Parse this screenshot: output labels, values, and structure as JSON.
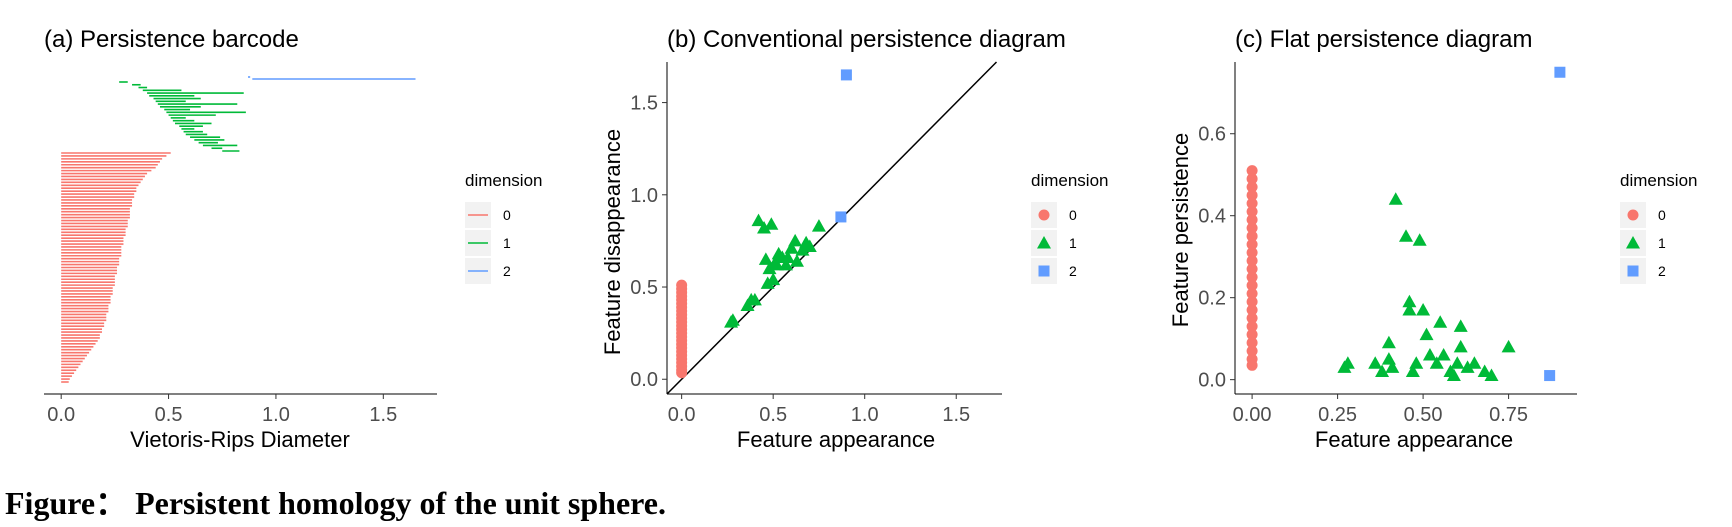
{
  "colors": {
    "dim0": "#F8766D",
    "dim1": "#00BA38",
    "dim2": "#619CFF"
  },
  "caption": "Figure： Persistent homology of the unit sphere.",
  "chart_data": [
    {
      "type": "barcode",
      "title": "(a) Persistence barcode",
      "xlabel": "Vietoris-Rips Diameter",
      "ylabel": "",
      "xlim": [
        -0.08,
        1.75
      ],
      "xticks": [
        "0.0",
        "0.5",
        "1.0",
        "1.5"
      ],
      "legend": {
        "title": "dimension",
        "entries": [
          "0",
          "1",
          "2"
        ],
        "position": "right"
      },
      "bars_dim0": [
        [
          0,
          0.51
        ],
        [
          0,
          0.49
        ],
        [
          0,
          0.47
        ],
        [
          0,
          0.46
        ],
        [
          0,
          0.45
        ],
        [
          0,
          0.44
        ],
        [
          0,
          0.42
        ],
        [
          0,
          0.4
        ],
        [
          0,
          0.39
        ],
        [
          0,
          0.38
        ],
        [
          0,
          0.37
        ],
        [
          0,
          0.36
        ],
        [
          0,
          0.35
        ],
        [
          0,
          0.35
        ],
        [
          0,
          0.34
        ],
        [
          0,
          0.34
        ],
        [
          0,
          0.33
        ],
        [
          0,
          0.33
        ],
        [
          0,
          0.33
        ],
        [
          0,
          0.32
        ],
        [
          0,
          0.32
        ],
        [
          0,
          0.32
        ],
        [
          0,
          0.32
        ],
        [
          0,
          0.31
        ],
        [
          0,
          0.31
        ],
        [
          0,
          0.31
        ],
        [
          0,
          0.3
        ],
        [
          0,
          0.3
        ],
        [
          0,
          0.3
        ],
        [
          0,
          0.29
        ],
        [
          0,
          0.29
        ],
        [
          0,
          0.29
        ],
        [
          0,
          0.28
        ],
        [
          0,
          0.28
        ],
        [
          0,
          0.28
        ],
        [
          0,
          0.28
        ],
        [
          0,
          0.27
        ],
        [
          0,
          0.27
        ],
        [
          0,
          0.27
        ],
        [
          0,
          0.26
        ],
        [
          0,
          0.26
        ],
        [
          0,
          0.26
        ],
        [
          0,
          0.25
        ],
        [
          0,
          0.25
        ],
        [
          0,
          0.25
        ],
        [
          0,
          0.25
        ],
        [
          0,
          0.24
        ],
        [
          0,
          0.24
        ],
        [
          0,
          0.24
        ],
        [
          0,
          0.23
        ],
        [
          0,
          0.23
        ],
        [
          0,
          0.23
        ],
        [
          0,
          0.22
        ],
        [
          0,
          0.22
        ],
        [
          0,
          0.22
        ],
        [
          0,
          0.21
        ],
        [
          0,
          0.21
        ],
        [
          0,
          0.21
        ],
        [
          0,
          0.2
        ],
        [
          0,
          0.2
        ],
        [
          0,
          0.19
        ],
        [
          0,
          0.19
        ],
        [
          0,
          0.18
        ],
        [
          0,
          0.18
        ],
        [
          0,
          0.17
        ],
        [
          0,
          0.16
        ],
        [
          0,
          0.15
        ],
        [
          0,
          0.14
        ],
        [
          0,
          0.13
        ],
        [
          0,
          0.12
        ],
        [
          0,
          0.11
        ],
        [
          0,
          0.1
        ],
        [
          0,
          0.09
        ],
        [
          0,
          0.08
        ],
        [
          0,
          0.07
        ],
        [
          0,
          0.06
        ],
        [
          0,
          0.05
        ],
        [
          0,
          0.04
        ],
        [
          0,
          0.035
        ]
      ],
      "bars_dim1": [
        [
          0.27,
          0.31
        ],
        [
          0.33,
          0.37
        ],
        [
          0.36,
          0.4
        ],
        [
          0.38,
          0.56
        ],
        [
          0.4,
          0.85
        ],
        [
          0.41,
          0.62
        ],
        [
          0.43,
          0.65
        ],
        [
          0.44,
          0.58
        ],
        [
          0.45,
          0.82
        ],
        [
          0.46,
          0.65
        ],
        [
          0.48,
          0.6
        ],
        [
          0.49,
          0.86
        ],
        [
          0.5,
          0.72
        ],
        [
          0.51,
          0.58
        ],
        [
          0.52,
          0.62
        ],
        [
          0.53,
          0.7
        ],
        [
          0.55,
          0.66
        ],
        [
          0.56,
          0.62
        ],
        [
          0.57,
          0.66
        ],
        [
          0.58,
          0.68
        ],
        [
          0.6,
          0.74
        ],
        [
          0.62,
          0.76
        ],
        [
          0.64,
          0.73
        ],
        [
          0.66,
          0.82
        ],
        [
          0.7,
          0.75
        ],
        [
          0.75,
          0.83
        ]
      ],
      "bars_dim2": [
        [
          0.87,
          0.88
        ],
        [
          0.89,
          1.65
        ]
      ]
    },
    {
      "type": "scatter",
      "title": "(b) Conventional persistence diagram",
      "xlabel": "Feature appearance",
      "ylabel": "Feature disappearance",
      "xlim": [
        -0.08,
        1.75
      ],
      "ylim": [
        -0.08,
        1.72
      ],
      "xticks": [
        "0.0",
        "0.5",
        "1.0",
        "1.5"
      ],
      "yticks": [
        "0.0",
        "0.5",
        "1.0",
        "1.5"
      ],
      "diagonal": true,
      "legend": {
        "title": "dimension",
        "entries": [
          "0",
          "1",
          "2"
        ],
        "position": "right"
      },
      "series": [
        {
          "name": "0",
          "shape": "circle",
          "points": [
            [
              0,
              0.51
            ],
            [
              0,
              0.49
            ],
            [
              0,
              0.47
            ],
            [
              0,
              0.45
            ],
            [
              0,
              0.43
            ],
            [
              0,
              0.41
            ],
            [
              0,
              0.39
            ],
            [
              0,
              0.37
            ],
            [
              0,
              0.35
            ],
            [
              0,
              0.33
            ],
            [
              0,
              0.31
            ],
            [
              0,
              0.29
            ],
            [
              0,
              0.27
            ],
            [
              0,
              0.25
            ],
            [
              0,
              0.23
            ],
            [
              0,
              0.21
            ],
            [
              0,
              0.19
            ],
            [
              0,
              0.17
            ],
            [
              0,
              0.15
            ],
            [
              0,
              0.13
            ],
            [
              0,
              0.11
            ],
            [
              0,
              0.09
            ],
            [
              0,
              0.07
            ],
            [
              0,
              0.05
            ],
            [
              0,
              0.035
            ]
          ]
        },
        {
          "name": "1",
          "shape": "triangle",
          "points": [
            [
              0.27,
              0.31
            ],
            [
              0.28,
              0.32
            ],
            [
              0.36,
              0.4
            ],
            [
              0.38,
              0.43
            ],
            [
              0.4,
              0.43
            ],
            [
              0.42,
              0.86
            ],
            [
              0.45,
              0.82
            ],
            [
              0.46,
              0.65
            ],
            [
              0.49,
              0.84
            ],
            [
              0.47,
              0.52
            ],
            [
              0.48,
              0.6
            ],
            [
              0.5,
              0.54
            ],
            [
              0.51,
              0.63
            ],
            [
              0.52,
              0.62
            ],
            [
              0.53,
              0.68
            ],
            [
              0.55,
              0.66
            ],
            [
              0.57,
              0.62
            ],
            [
              0.58,
              0.66
            ],
            [
              0.6,
              0.71
            ],
            [
              0.62,
              0.75
            ],
            [
              0.63,
              0.64
            ],
            [
              0.66,
              0.7
            ],
            [
              0.68,
              0.74
            ],
            [
              0.7,
              0.72
            ],
            [
              0.75,
              0.83
            ]
          ]
        },
        {
          "name": "2",
          "shape": "square",
          "points": [
            [
              0.87,
              0.88
            ],
            [
              0.9,
              1.65
            ]
          ]
        }
      ]
    },
    {
      "type": "scatter",
      "title": "(c) Flat persistence diagram",
      "xlabel": "Feature appearance",
      "ylabel": "Feature persistence",
      "xlim": [
        -0.05,
        0.95
      ],
      "ylim": [
        -0.035,
        0.775
      ],
      "xticks": [
        "0.00",
        "0.25",
        "0.50",
        "0.75"
      ],
      "yticks": [
        "0.0",
        "0.2",
        "0.4",
        "0.6"
      ],
      "legend": {
        "title": "dimension",
        "entries": [
          "0",
          "1",
          "2"
        ],
        "position": "right"
      },
      "series": [
        {
          "name": "0",
          "shape": "circle",
          "points": [
            [
              0,
              0.51
            ],
            [
              0,
              0.49
            ],
            [
              0,
              0.47
            ],
            [
              0,
              0.45
            ],
            [
              0,
              0.43
            ],
            [
              0,
              0.41
            ],
            [
              0,
              0.39
            ],
            [
              0,
              0.37
            ],
            [
              0,
              0.35
            ],
            [
              0,
              0.33
            ],
            [
              0,
              0.31
            ],
            [
              0,
              0.29
            ],
            [
              0,
              0.27
            ],
            [
              0,
              0.25
            ],
            [
              0,
              0.23
            ],
            [
              0,
              0.21
            ],
            [
              0,
              0.19
            ],
            [
              0,
              0.17
            ],
            [
              0,
              0.15
            ],
            [
              0,
              0.13
            ],
            [
              0,
              0.11
            ],
            [
              0,
              0.09
            ],
            [
              0,
              0.07
            ],
            [
              0,
              0.05
            ],
            [
              0,
              0.035
            ]
          ]
        },
        {
          "name": "1",
          "shape": "triangle",
          "points": [
            [
              0.27,
              0.03
            ],
            [
              0.28,
              0.04
            ],
            [
              0.36,
              0.04
            ],
            [
              0.38,
              0.02
            ],
            [
              0.4,
              0.05
            ],
            [
              0.4,
              0.09
            ],
            [
              0.41,
              0.03
            ],
            [
              0.42,
              0.44
            ],
            [
              0.45,
              0.35
            ],
            [
              0.46,
              0.19
            ],
            [
              0.46,
              0.17
            ],
            [
              0.47,
              0.02
            ],
            [
              0.48,
              0.04
            ],
            [
              0.49,
              0.34
            ],
            [
              0.5,
              0.17
            ],
            [
              0.51,
              0.11
            ],
            [
              0.52,
              0.06
            ],
            [
              0.54,
              0.04
            ],
            [
              0.55,
              0.14
            ],
            [
              0.56,
              0.06
            ],
            [
              0.58,
              0.02
            ],
            [
              0.59,
              0.01
            ],
            [
              0.6,
              0.04
            ],
            [
              0.61,
              0.13
            ],
            [
              0.61,
              0.08
            ],
            [
              0.63,
              0.03
            ],
            [
              0.65,
              0.04
            ],
            [
              0.68,
              0.02
            ],
            [
              0.7,
              0.01
            ],
            [
              0.75,
              0.08
            ]
          ]
        },
        {
          "name": "2",
          "shape": "square",
          "points": [
            [
              0.87,
              0.01
            ],
            [
              0.9,
              0.75
            ]
          ]
        }
      ]
    }
  ]
}
